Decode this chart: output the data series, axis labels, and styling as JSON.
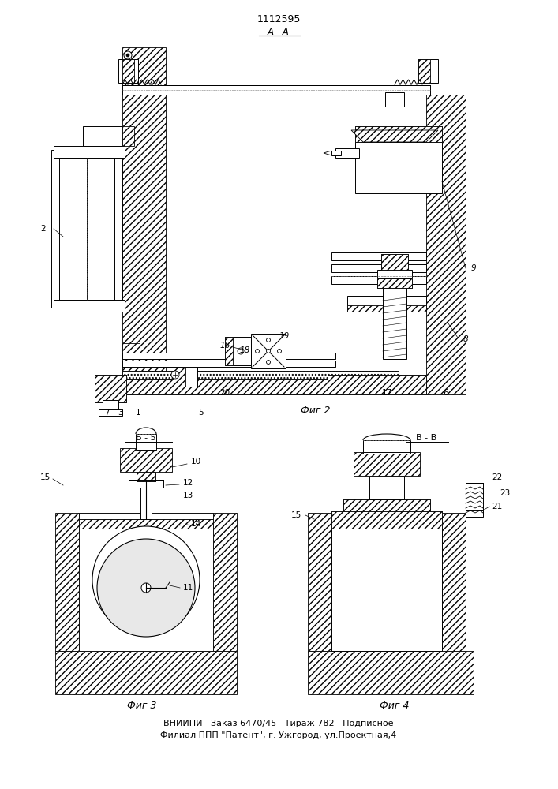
{
  "title_number": "1112595",
  "aa_label": "А - А",
  "b5_label": "Б - 5",
  "vv_label": "В - В",
  "fig2_label": "Фиг 2",
  "fig3_label": "Фиг 3",
  "fig4_label": "Фиг 4",
  "footer_line1": "ВНИИПИ   Заказ 6470/45   Тираж 782   Подписное",
  "footer_line2": "Филиал ППП \"Патент\", г. Ужгород, ул.Проектная,4",
  "bg_color": "#ffffff",
  "lc": "#000000"
}
